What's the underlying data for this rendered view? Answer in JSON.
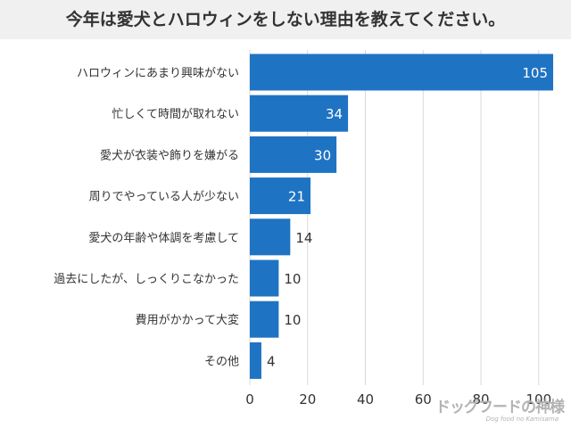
{
  "title": "今年は愛犬とハロウィンをしない理由を教えてください。",
  "watermark": {
    "main": "ドッグフードの神様",
    "sub": "Dog food no Kamisama"
  },
  "colors": {
    "bar": "#1f73c3",
    "grid": "#d9d9d9",
    "text": "#333333",
    "title_bg": "#f0f0f0",
    "inside_label": "#ffffff"
  },
  "chart_data": {
    "type": "bar",
    "orientation": "horizontal",
    "categories": [
      "ハロウィンにあまり興味がない",
      "忙しくて時間が取れない",
      "愛犬が衣装や飾りを嫌がる",
      "周りでやっている人が少ない",
      "愛犬の年齢や体調を考慮して",
      "過去にしたが、しっくりこなかった",
      "費用がかかって大変",
      "その他"
    ],
    "values": [
      105,
      34,
      30,
      21,
      14,
      10,
      10,
      4
    ],
    "xlim": [
      0,
      105
    ],
    "xticks": [
      0,
      20,
      40,
      60,
      80,
      100
    ],
    "grid": true,
    "legend": "none",
    "value_labels": true
  }
}
